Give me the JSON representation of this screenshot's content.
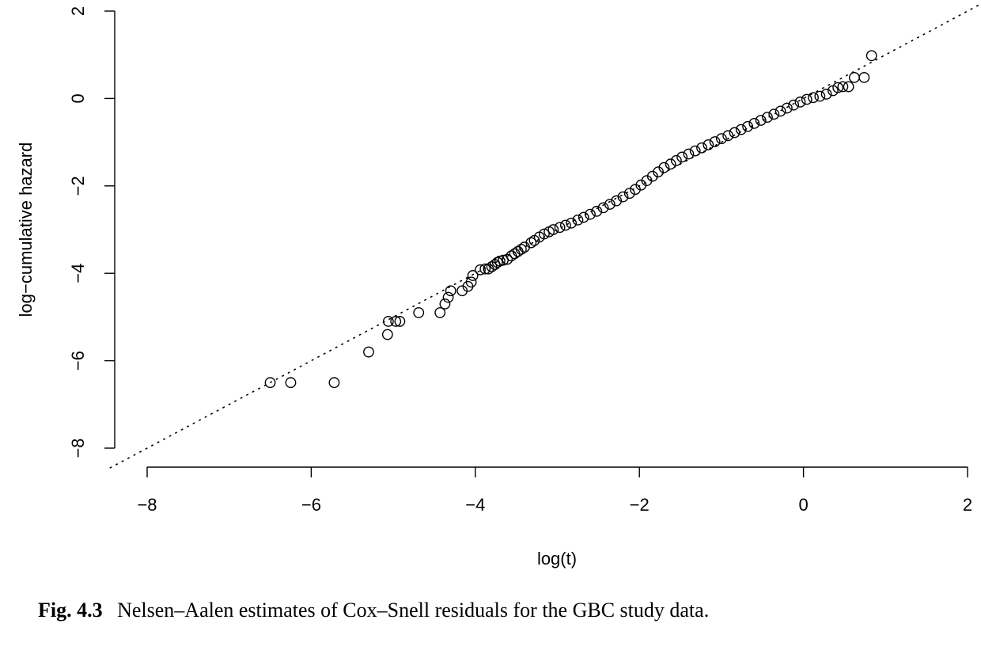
{
  "caption": {
    "label": "Fig. 4.3",
    "text": "Nelsen–Aalen estimates of Cox–Snell residuals for the GBC study data."
  },
  "chart_data": {
    "type": "scatter",
    "title": "",
    "xlabel": "log(t)",
    "ylabel": "log−cumulative hazard",
    "xlim": [
      -8,
      2
    ],
    "ylim": [
      -8,
      2
    ],
    "xticks": [
      -8,
      -6,
      -4,
      -2,
      0,
      2
    ],
    "yticks": [
      -8,
      -6,
      -4,
      -2,
      0,
      2
    ],
    "xtick_labels": [
      "−8",
      "−6",
      "−4",
      "−2",
      "0",
      "2"
    ],
    "ytick_labels": [
      "−8",
      "−6",
      "−4",
      "−2",
      "0",
      "2"
    ],
    "grid": false,
    "reference_line": {
      "style": "dotted",
      "slope": 1,
      "intercept": 0
    },
    "x": [
      -6.5,
      -6.25,
      -5.72,
      -5.3,
      -5.07,
      -5.06,
      -4.97,
      -4.92,
      -4.69,
      -4.43,
      -4.37,
      -4.33,
      -4.3,
      -4.16,
      -4.09,
      -4.05,
      -4.03,
      -3.94,
      -3.88,
      -3.84,
      -3.8,
      -3.76,
      -3.73,
      -3.7,
      -3.66,
      -3.61,
      -3.56,
      -3.52,
      -3.48,
      -3.44,
      -3.4,
      -3.32,
      -3.28,
      -3.22,
      -3.16,
      -3.1,
      -3.05,
      -2.97,
      -2.9,
      -2.83,
      -2.75,
      -2.68,
      -2.6,
      -2.52,
      -2.44,
      -2.36,
      -2.28,
      -2.2,
      -2.12,
      -2.05,
      -1.98,
      -1.91,
      -1.84,
      -1.77,
      -1.7,
      -1.62,
      -1.55,
      -1.48,
      -1.4,
      -1.32,
      -1.24,
      -1.16,
      -1.08,
      -1.0,
      -0.92,
      -0.84,
      -0.76,
      -0.68,
      -0.6,
      -0.52,
      -0.44,
      -0.36,
      -0.28,
      -0.2,
      -0.12,
      -0.04,
      0.04,
      0.12,
      0.2,
      0.28,
      0.36,
      0.42,
      0.48,
      0.55,
      0.62,
      0.74,
      0.83
    ],
    "y": [
      -6.5,
      -6.5,
      -6.5,
      -5.8,
      -5.4,
      -5.1,
      -5.1,
      -5.1,
      -4.9,
      -4.9,
      -4.7,
      -4.55,
      -4.4,
      -4.4,
      -4.3,
      -4.2,
      -4.05,
      -3.92,
      -3.9,
      -3.9,
      -3.85,
      -3.8,
      -3.75,
      -3.72,
      -3.7,
      -3.68,
      -3.6,
      -3.55,
      -3.5,
      -3.45,
      -3.4,
      -3.3,
      -3.25,
      -3.17,
      -3.1,
      -3.05,
      -3.0,
      -2.95,
      -2.9,
      -2.85,
      -2.78,
      -2.72,
      -2.65,
      -2.58,
      -2.5,
      -2.42,
      -2.34,
      -2.25,
      -2.17,
      -2.08,
      -1.98,
      -1.88,
      -1.78,
      -1.68,
      -1.58,
      -1.5,
      -1.42,
      -1.34,
      -1.27,
      -1.2,
      -1.13,
      -1.06,
      -0.99,
      -0.92,
      -0.85,
      -0.78,
      -0.71,
      -0.64,
      -0.57,
      -0.5,
      -0.43,
      -0.36,
      -0.29,
      -0.22,
      -0.15,
      -0.08,
      -0.02,
      0.02,
      0.05,
      0.1,
      0.18,
      0.25,
      0.27,
      0.27,
      0.48,
      0.48,
      0.98
    ]
  }
}
